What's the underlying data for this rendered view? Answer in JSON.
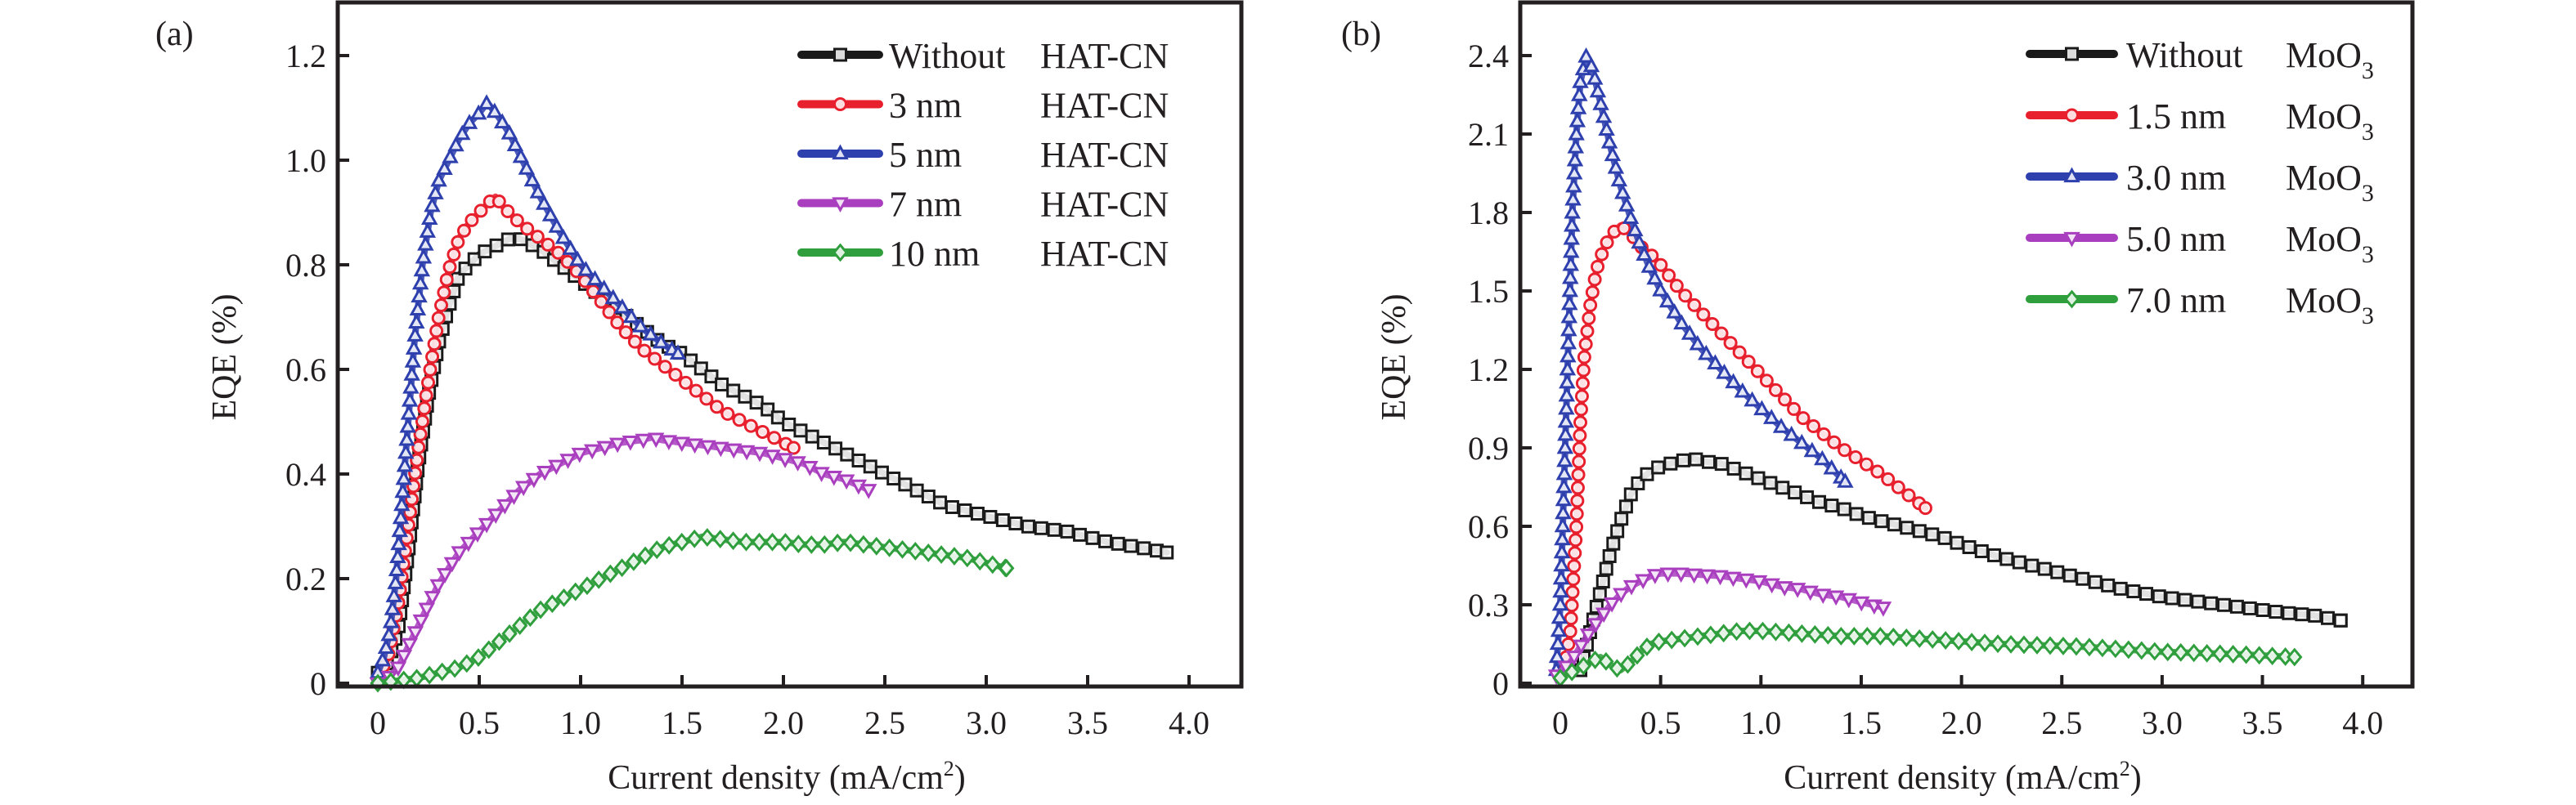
{
  "chart_data": [
    {
      "type": "line",
      "panel_label": "(a)",
      "title": "",
      "xlabel": "Current density (mA/cm",
      "xlabel_sup": "2",
      "xlabel_close": ")",
      "ylabel": "EQE (%)",
      "xlim": [
        -0.2,
        4.2
      ],
      "ylim": [
        0,
        1.3
      ],
      "xticks": [
        0,
        0.5,
        1.0,
        1.5,
        2.0,
        2.5,
        3.0,
        3.5,
        4.0
      ],
      "xtick_labels": [
        "0",
        "0.5",
        "1.0",
        "1.5",
        "2.0",
        "2.5",
        "3.0",
        "3.5",
        "4.0"
      ],
      "yticks": [
        0,
        0.2,
        0.4,
        0.6,
        0.8,
        1.0,
        1.2
      ],
      "ytick_labels": [
        "0",
        "0.2",
        "0.4",
        "0.6",
        "0.8",
        "1.0",
        "1.2"
      ],
      "grid": false,
      "legend_position": "top-right",
      "series": [
        {
          "name": "Without HAT-CN",
          "label_main": "Without",
          "label_suffix": "HAT-CN",
          "color": "#1a1a1a",
          "marker": "square",
          "x": [
            0,
            0.05,
            0.1,
            0.15,
            0.2,
            0.25,
            0.3,
            0.35,
            0.4,
            0.45,
            0.5,
            0.55,
            0.6,
            0.65,
            0.7,
            0.8,
            0.9,
            1.0,
            1.1,
            1.2,
            1.3,
            1.4,
            1.5,
            1.6,
            1.7,
            1.8,
            1.9,
            2.0,
            2.1,
            2.2,
            2.3,
            2.4,
            2.5,
            2.6,
            2.7,
            2.8,
            2.9,
            3.0,
            3.2,
            3.4,
            3.6,
            3.75,
            3.89
          ],
          "y": [
            0.02,
            0.04,
            0.1,
            0.25,
            0.42,
            0.55,
            0.65,
            0.72,
            0.78,
            0.8,
            0.82,
            0.83,
            0.84,
            0.85,
            0.85,
            0.83,
            0.8,
            0.77,
            0.74,
            0.71,
            0.68,
            0.65,
            0.63,
            0.6,
            0.57,
            0.55,
            0.53,
            0.5,
            0.48,
            0.46,
            0.44,
            0.42,
            0.4,
            0.38,
            0.36,
            0.34,
            0.33,
            0.32,
            0.3,
            0.29,
            0.27,
            0.26,
            0.25
          ]
        },
        {
          "name": "3 nm HAT-CN",
          "label_main": "3 nm",
          "label_suffix": "HAT-CN",
          "color": "#e8202e",
          "marker": "circle",
          "x": [
            0,
            0.05,
            0.1,
            0.15,
            0.2,
            0.25,
            0.3,
            0.35,
            0.4,
            0.45,
            0.5,
            0.55,
            0.58,
            0.62,
            0.7,
            0.8,
            0.9,
            1.0,
            1.1,
            1.2,
            1.3,
            1.4,
            1.5,
            1.6,
            1.7,
            1.8,
            1.9,
            2.0,
            2.05
          ],
          "y": [
            0.01,
            0.05,
            0.15,
            0.3,
            0.45,
            0.58,
            0.7,
            0.79,
            0.85,
            0.88,
            0.9,
            0.92,
            0.93,
            0.91,
            0.88,
            0.85,
            0.82,
            0.78,
            0.73,
            0.68,
            0.64,
            0.61,
            0.58,
            0.55,
            0.52,
            0.5,
            0.48,
            0.46,
            0.45
          ]
        },
        {
          "name": "5 nm HAT-CN",
          "label_main": "5 nm",
          "label_suffix": "HAT-CN",
          "color": "#2e3fae",
          "marker": "triangle-up",
          "x": [
            0,
            0.03,
            0.06,
            0.09,
            0.12,
            0.15,
            0.18,
            0.22,
            0.26,
            0.3,
            0.35,
            0.4,
            0.45,
            0.5,
            0.54,
            0.6,
            0.65,
            0.7,
            0.8,
            0.9,
            1.0,
            1.1,
            1.2,
            1.3,
            1.4,
            1.48
          ],
          "y": [
            0.02,
            0.05,
            0.1,
            0.2,
            0.35,
            0.5,
            0.65,
            0.8,
            0.9,
            0.96,
            1.0,
            1.04,
            1.07,
            1.09,
            1.11,
            1.08,
            1.05,
            1.01,
            0.93,
            0.86,
            0.8,
            0.76,
            0.72,
            0.68,
            0.65,
            0.63
          ]
        },
        {
          "name": "7 nm HAT-CN",
          "label_main": "7 nm",
          "label_suffix": "HAT-CN",
          "color": "#a93fbf",
          "marker": "triangle-down",
          "x": [
            0,
            0.05,
            0.1,
            0.15,
            0.2,
            0.25,
            0.3,
            0.35,
            0.4,
            0.45,
            0.5,
            0.6,
            0.7,
            0.8,
            0.9,
            1.0,
            1.1,
            1.2,
            1.3,
            1.35,
            1.4,
            1.5,
            1.6,
            1.7,
            1.8,
            1.9,
            2.0,
            2.1,
            2.2,
            2.3,
            2.42
          ],
          "y": [
            0.0,
            0.01,
            0.03,
            0.07,
            0.11,
            0.15,
            0.19,
            0.22,
            0.25,
            0.27,
            0.29,
            0.33,
            0.37,
            0.4,
            0.42,
            0.44,
            0.45,
            0.46,
            0.465,
            0.47,
            0.465,
            0.46,
            0.455,
            0.45,
            0.445,
            0.44,
            0.43,
            0.42,
            0.4,
            0.39,
            0.37
          ]
        },
        {
          "name": "10 nm HAT-CN",
          "label_main": "10 nm",
          "label_suffix": "HAT-CN",
          "color": "#2f9e3c",
          "marker": "diamond",
          "x": [
            0,
            0.1,
            0.2,
            0.3,
            0.4,
            0.5,
            0.6,
            0.7,
            0.8,
            0.9,
            1.0,
            1.1,
            1.2,
            1.3,
            1.4,
            1.5,
            1.6,
            1.7,
            1.8,
            1.9,
            2.0,
            2.1,
            2.2,
            2.3,
            2.4,
            2.5,
            2.6,
            2.7,
            2.8,
            2.9,
            3.0,
            3.1
          ],
          "y": [
            0.0,
            0.005,
            0.01,
            0.02,
            0.03,
            0.05,
            0.08,
            0.11,
            0.14,
            0.16,
            0.18,
            0.2,
            0.22,
            0.24,
            0.26,
            0.27,
            0.28,
            0.275,
            0.27,
            0.27,
            0.27,
            0.265,
            0.265,
            0.27,
            0.265,
            0.26,
            0.255,
            0.25,
            0.245,
            0.24,
            0.23,
            0.22
          ]
        }
      ]
    },
    {
      "type": "line",
      "panel_label": "(b)",
      "title": "",
      "xlabel": "Current density (mA/cm",
      "xlabel_sup": "2",
      "xlabel_close": ")",
      "ylabel": "EQE (%)",
      "xlim": [
        -0.2,
        4.25
      ],
      "ylim": [
        0,
        2.6
      ],
      "xticks": [
        0,
        0.5,
        1.0,
        1.5,
        2.0,
        2.5,
        3.0,
        3.5,
        4.0
      ],
      "xtick_labels": [
        "0",
        "0.5",
        "1.0",
        "1.5",
        "2.0",
        "2.5",
        "3.0",
        "3.5",
        "4.0"
      ],
      "yticks": [
        0,
        0.3,
        0.6,
        0.9,
        1.2,
        1.5,
        1.8,
        2.1,
        2.4
      ],
      "ytick_labels": [
        "0",
        "0.3",
        "0.6",
        "0.9",
        "1.2",
        "1.5",
        "1.8",
        "2.1",
        "2.4"
      ],
      "grid": false,
      "legend_position": "top-right",
      "series": [
        {
          "name": "Without MoO3",
          "label_main": "Without",
          "label_suffix": "MoO",
          "label_sub": "3",
          "color": "#1a1a1a",
          "marker": "square",
          "x": [
            0.1,
            0.15,
            0.2,
            0.25,
            0.3,
            0.35,
            0.4,
            0.45,
            0.5,
            0.55,
            0.6,
            0.66,
            0.7,
            0.8,
            0.9,
            1.0,
            1.1,
            1.2,
            1.3,
            1.4,
            1.5,
            1.6,
            1.7,
            1.8,
            1.9,
            2.0,
            2.2,
            2.4,
            2.6,
            2.8,
            3.0,
            3.2,
            3.4,
            3.6,
            3.75,
            3.89
          ],
          "y": [
            0.05,
            0.2,
            0.35,
            0.5,
            0.62,
            0.72,
            0.78,
            0.81,
            0.83,
            0.84,
            0.85,
            0.86,
            0.85,
            0.84,
            0.81,
            0.78,
            0.75,
            0.72,
            0.69,
            0.67,
            0.64,
            0.62,
            0.6,
            0.58,
            0.56,
            0.53,
            0.48,
            0.44,
            0.4,
            0.36,
            0.33,
            0.31,
            0.29,
            0.27,
            0.26,
            0.24
          ]
        },
        {
          "name": "1.5 nm MoO3",
          "label_main": "1.5 nm",
          "label_suffix": "MoO",
          "label_sub": "3",
          "color": "#e8202e",
          "marker": "circle",
          "x": [
            0.02,
            0.05,
            0.08,
            0.1,
            0.12,
            0.15,
            0.18,
            0.22,
            0.26,
            0.3,
            0.35,
            0.4,
            0.45,
            0.5,
            0.55,
            0.6,
            0.7,
            0.8,
            0.9,
            1.0,
            1.1,
            1.2,
            1.3,
            1.4,
            1.5,
            1.6,
            1.7,
            1.82
          ],
          "y": [
            0.05,
            0.2,
            0.6,
            1.0,
            1.25,
            1.45,
            1.58,
            1.67,
            1.72,
            1.75,
            1.72,
            1.67,
            1.64,
            1.6,
            1.55,
            1.5,
            1.42,
            1.34,
            1.26,
            1.18,
            1.1,
            1.02,
            0.96,
            0.9,
            0.85,
            0.8,
            0.74,
            0.67
          ]
        },
        {
          "name": "3.0 nm MoO3",
          "label_main": "3.0 nm",
          "label_suffix": "MoO",
          "label_sub": "3",
          "color": "#2e3fae",
          "marker": "triangle-up",
          "x": [
            -0.02,
            0.0,
            0.02,
            0.04,
            0.06,
            0.08,
            0.1,
            0.13,
            0.16,
            0.2,
            0.25,
            0.3,
            0.35,
            0.4,
            0.45,
            0.5,
            0.6,
            0.7,
            0.8,
            0.9,
            1.0,
            1.1,
            1.2,
            1.3,
            1.42
          ],
          "y": [
            0.05,
            0.3,
            0.8,
            1.3,
            1.8,
            2.1,
            2.3,
            2.4,
            2.35,
            2.22,
            2.05,
            1.9,
            1.78,
            1.67,
            1.58,
            1.5,
            1.38,
            1.28,
            1.2,
            1.12,
            1.05,
            0.98,
            0.92,
            0.86,
            0.77
          ]
        },
        {
          "name": "5.0 nm MoO3",
          "label_main": "5.0 nm",
          "label_suffix": "MoO",
          "label_sub": "3",
          "color": "#a93fbf",
          "marker": "triangle-down",
          "x": [
            -0.02,
            0.05,
            0.1,
            0.15,
            0.2,
            0.25,
            0.3,
            0.35,
            0.4,
            0.45,
            0.5,
            0.55,
            0.6,
            0.7,
            0.8,
            0.9,
            1.0,
            1.1,
            1.2,
            1.3,
            1.4,
            1.5,
            1.61
          ],
          "y": [
            0.03,
            0.08,
            0.14,
            0.2,
            0.25,
            0.3,
            0.34,
            0.37,
            0.39,
            0.41,
            0.42,
            0.42,
            0.42,
            0.415,
            0.41,
            0.4,
            0.39,
            0.37,
            0.36,
            0.34,
            0.33,
            0.31,
            0.29
          ]
        },
        {
          "name": "7.0 nm MoO3",
          "label_main": "7.0 nm",
          "label_suffix": "MoO",
          "label_sub": "3",
          "color": "#2f9e3c",
          "marker": "diamond",
          "x": [
            0,
            0.05,
            0.1,
            0.15,
            0.2,
            0.25,
            0.3,
            0.35,
            0.4,
            0.45,
            0.5,
            0.6,
            0.7,
            0.8,
            0.9,
            1.0,
            1.2,
            1.4,
            1.6,
            1.8,
            2.0,
            2.2,
            2.4,
            2.6,
            2.8,
            3.0,
            3.2,
            3.4,
            3.66
          ],
          "y": [
            0.02,
            0.04,
            0.06,
            0.08,
            0.1,
            0.07,
            0.05,
            0.08,
            0.12,
            0.15,
            0.16,
            0.17,
            0.18,
            0.19,
            0.2,
            0.2,
            0.19,
            0.18,
            0.18,
            0.17,
            0.16,
            0.15,
            0.145,
            0.14,
            0.13,
            0.12,
            0.115,
            0.11,
            0.1
          ]
        }
      ]
    }
  ]
}
